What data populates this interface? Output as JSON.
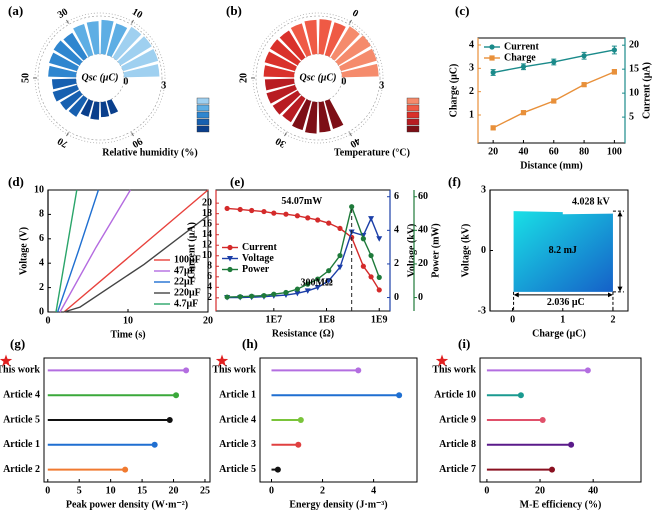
{
  "chart_data": [
    {
      "type": "radial-bar",
      "label": "(a)",
      "center_label": "Qsc (μC)",
      "legend_title": "Relative humidity (%)",
      "xlim": [
        -10,
        90
      ],
      "xticks": [
        10,
        30,
        50,
        70,
        90
      ],
      "rlim": [
        0,
        3
      ],
      "rticks": [
        0,
        3
      ],
      "series": [
        {
          "color": "#9fd0f0",
          "x": [
            -7.5,
            -2.5,
            2.5,
            7.5
          ],
          "values": [
            2.8,
            2.9,
            2.9,
            2.85
          ]
        },
        {
          "color": "#5eaee4",
          "x": [
            12.5,
            17.5,
            22.5,
            27.5
          ],
          "values": [
            2.6,
            2.7,
            2.6,
            2.55
          ]
        },
        {
          "color": "#2f86cf",
          "x": [
            32.5,
            37.5,
            42.5,
            47.5
          ],
          "values": [
            2.3,
            2.4,
            2.3,
            2.2
          ]
        },
        {
          "color": "#1760b0",
          "x": [
            52.5,
            57.5,
            62.5,
            67.5
          ],
          "values": [
            1.9,
            2.0,
            1.8,
            1.7
          ]
        },
        {
          "color": "#0a3f8c",
          "x": [
            72.5,
            77.5,
            82.5,
            87.5
          ],
          "values": [
            1.3,
            1.4,
            1.2,
            1.1
          ]
        }
      ]
    },
    {
      "type": "radial-bar",
      "label": "(b)",
      "center_label": "Qsc (μC)",
      "legend_title": "Temperature (°C)",
      "xlim": [
        -10,
        40
      ],
      "xticks": [
        0,
        20,
        30,
        40
      ],
      "rlim": [
        0,
        3
      ],
      "rticks": [
        0,
        3
      ],
      "series": [
        {
          "color": "#f58b6c",
          "x": [
            -8.75,
            -6.25,
            -3.75,
            -1.25
          ],
          "values": [
            2.9,
            2.95,
            3.0,
            2.9
          ]
        },
        {
          "color": "#ef5a45",
          "x": [
            1.25,
            3.75,
            6.25,
            8.75
          ],
          "values": [
            2.7,
            2.75,
            2.7,
            2.6
          ]
        },
        {
          "color": "#d9312b",
          "x": [
            11.25,
            13.75,
            16.25,
            18.75
          ],
          "values": [
            2.5,
            2.55,
            2.5,
            2.4
          ]
        },
        {
          "color": "#b81c22",
          "x": [
            21.25,
            23.75,
            26.25,
            28.75
          ],
          "values": [
            2.3,
            2.35,
            2.3,
            2.2
          ]
        },
        {
          "color": "#7d0f16",
          "x": [
            31.25,
            33.75,
            36.25,
            38.75
          ],
          "values": [
            2.4,
            2.5,
            2.4,
            2.3
          ]
        }
      ]
    },
    {
      "type": "line",
      "label": "(c)",
      "x": [
        20,
        40,
        60,
        80,
        100
      ],
      "xlim": [
        10,
        107
      ],
      "xticks": [
        20,
        40,
        60,
        80,
        100
      ],
      "ylim": [
        -0.2,
        4.3
      ],
      "yticks": [
        1,
        2,
        3,
        4
      ],
      "y2lim": [
        -0.4,
        21.5
      ],
      "y2ticks": [
        5,
        10,
        15,
        20
      ],
      "xlabel": "Distance (mm)",
      "ylabel": "Charge (μC)",
      "y2label": "Current (μA)",
      "legend": "upper left",
      "axis_colors": true,
      "series": [
        {
          "name": "Current",
          "color": "#1a8a8a",
          "marker": "circle",
          "axis": "y2",
          "values": [
            14.3,
            15.5,
            16.5,
            17.8,
            19
          ],
          "errors": [
            0.6,
            0.6,
            0.6,
            0.7,
            0.8
          ]
        },
        {
          "name": "Charge",
          "color": "#e8903a",
          "marker": "square",
          "values": [
            0.45,
            1.1,
            1.6,
            2.3,
            2.85
          ],
          "errors": [
            0.08,
            0.08,
            0.08,
            0.08,
            0.1
          ]
        }
      ]
    },
    {
      "type": "line",
      "label": "(d)",
      "xlim": [
        0,
        20
      ],
      "xticks": [
        0,
        10,
        20
      ],
      "ylim": [
        0,
        10
      ],
      "yticks": [
        0,
        2,
        4,
        6,
        8,
        10
      ],
      "xlabel": "Time (s)",
      "ylabel": "Voltage (V)",
      "legend": "lower right",
      "series": [
        {
          "name": "100μF",
          "color": "#e8413c",
          "x": [
            2,
            11,
            20
          ],
          "values": [
            0,
            5,
            10
          ]
        },
        {
          "name": "47μF",
          "color": "#b46be0",
          "x": [
            1.5,
            6,
            10.3
          ],
          "values": [
            0,
            5.3,
            10
          ]
        },
        {
          "name": "22μF",
          "color": "#1f6fd1",
          "x": [
            1.2,
            3.8,
            6.3
          ],
          "values": [
            0,
            5,
            10
          ]
        },
        {
          "name": "220μF",
          "color": "#444444",
          "x": [
            2,
            4,
            12,
            20
          ],
          "values": [
            0,
            0.4,
            3.9,
            7.9
          ]
        },
        {
          "name": "4.7μF",
          "color": "#2aa56a",
          "x": [
            1,
            2.3,
            3.6
          ],
          "values": [
            0,
            5,
            10
          ]
        }
      ]
    },
    {
      "type": "line",
      "label": "(e)",
      "xscale": "log",
      "x": [
        1300000,
        2300000,
        3800000,
        6500000,
        10000000,
        17000000,
        28000000,
        44000000,
        68000000,
        110000000,
        180000000,
        300000000,
        500000000,
        700000000,
        1000000000
      ],
      "xlim": [
        800000,
        1600000000
      ],
      "xticks": [
        {
          "value": 10000000,
          "label": "1E7"
        },
        {
          "value": 100000000,
          "label": "1E8"
        },
        {
          "value": 1000000000,
          "label": "1E9"
        }
      ],
      "ylim": [
        -0.5,
        22.5
      ],
      "yticks": [
        2,
        4,
        6,
        8,
        10,
        12,
        14,
        16,
        18,
        20
      ],
      "y2lim": [
        -0.8,
        6.4
      ],
      "y2ticks": [
        0,
        2,
        4,
        6
      ],
      "y3lim": [
        -8,
        64
      ],
      "y3ticks": [
        0,
        20,
        40,
        60
      ],
      "xlabel": "Resistance (Ω)",
      "ylabel": "Current (μA)",
      "y2label": "Voltage (kV)",
      "y3label": "Power (mW)",
      "legend": "center left",
      "axis_colors": true,
      "annotations": [
        {
          "text": "54.07mW",
          "x": 34000000,
          "y": 20.3
        },
        {
          "text": "300MΩ",
          "x": 65000000,
          "y": 4.8
        }
      ],
      "series": [
        {
          "name": "Current",
          "color": "#d42a2a",
          "marker": "circle",
          "values": [
            19,
            18.8,
            18.6,
            18.4,
            18.1,
            17.9,
            17.6,
            17.2,
            16.8,
            16.2,
            15.2,
            13.5,
            8,
            6,
            3.5
          ]
        },
        {
          "name": "Voltage",
          "color": "#1c3fa8",
          "marker": "triangle-down",
          "axis": "y2",
          "values": [
            0,
            0,
            0.02,
            0.05,
            0.1,
            0.15,
            0.25,
            0.4,
            0.6,
            1.0,
            1.8,
            3.9,
            3.7,
            4.7,
            3.5
          ]
        },
        {
          "name": "Power",
          "color": "#1e7a3a",
          "marker": "circle",
          "axis": "y3",
          "drop_line": true,
          "values": [
            0.3,
            0.5,
            0.8,
            1.2,
            2,
            3,
            5,
            8,
            11,
            16,
            25,
            54.07,
            35,
            25,
            12
          ]
        }
      ]
    },
    {
      "type": "loop",
      "label": "(f)",
      "xlim": [
        -0.45,
        2.3
      ],
      "xticks": [
        0,
        1,
        2
      ],
      "ylim": [
        -3,
        3
      ],
      "yticks": [
        -3,
        0,
        3
      ],
      "xlabel": "Charge (μC)",
      "ylabel": "Voltage (kV)",
      "annotations": [
        {
          "text": "4.028 kV",
          "x": 1.56,
          "y": 2.4
        },
        {
          "text": "8.2 mJ",
          "x": 1.0,
          "y": 0
        },
        {
          "text": "2.036 μC",
          "x": 1.06,
          "y": -2.6
        }
      ],
      "series": [
        {
          "colors": [
            "#19e0e6",
            "#1560c8"
          ],
          "x": [
            0.02,
            0.02,
            1.0,
            1.0,
            2.0,
            2.0
          ],
          "values": [
            -2.05,
            1.95,
            1.9,
            1.8,
            1.83,
            -2.05
          ]
        }
      ]
    },
    {
      "type": "lollipop",
      "label": "(g)",
      "categories": [
        "This work",
        "Article 4",
        "Article 5",
        "Article 1",
        "Article 2"
      ],
      "values": [
        22,
        20.4,
        19.4,
        17,
        12.3
      ],
      "colors": [
        "#b36ee0",
        "#3aa83a",
        "#111111",
        "#1f6fd1",
        "#f07a30"
      ],
      "xlim": [
        -0.6,
        25.8
      ],
      "xticks": [
        0,
        5,
        10,
        15,
        20,
        25
      ],
      "xlabel": "Peak power density (W·m⁻²)"
    },
    {
      "type": "lollipop",
      "label": "(h)",
      "categories": [
        "This work",
        "Article 1",
        "Article 4",
        "Article 3",
        "Article 5"
      ],
      "values": [
        3.4,
        5.0,
        1.15,
        1.05,
        0.25
      ],
      "colors": [
        "#b36ee0",
        "#1f6fd1",
        "#7ac43a",
        "#e04040",
        "#111111"
      ],
      "xlim": [
        -0.45,
        5.7
      ],
      "xticks": [
        0,
        2,
        4
      ],
      "xlabel": "Energy  density (J·m⁻³)"
    },
    {
      "type": "lollipop",
      "label": "(i)",
      "categories": [
        "This work",
        "Article 10",
        "Article 9",
        "Article 8",
        "Article 7"
      ],
      "values": [
        38,
        12.8,
        21,
        31.7,
        24.5
      ],
      "colors": [
        "#b36ee0",
        "#1a9a90",
        "#e0506a",
        "#5a1a8a",
        "#8a1020"
      ],
      "xlim": [
        -2.6,
        58
      ],
      "xticks": [
        0,
        20,
        40
      ],
      "xlabel": "M-E efficiency (%)"
    }
  ]
}
